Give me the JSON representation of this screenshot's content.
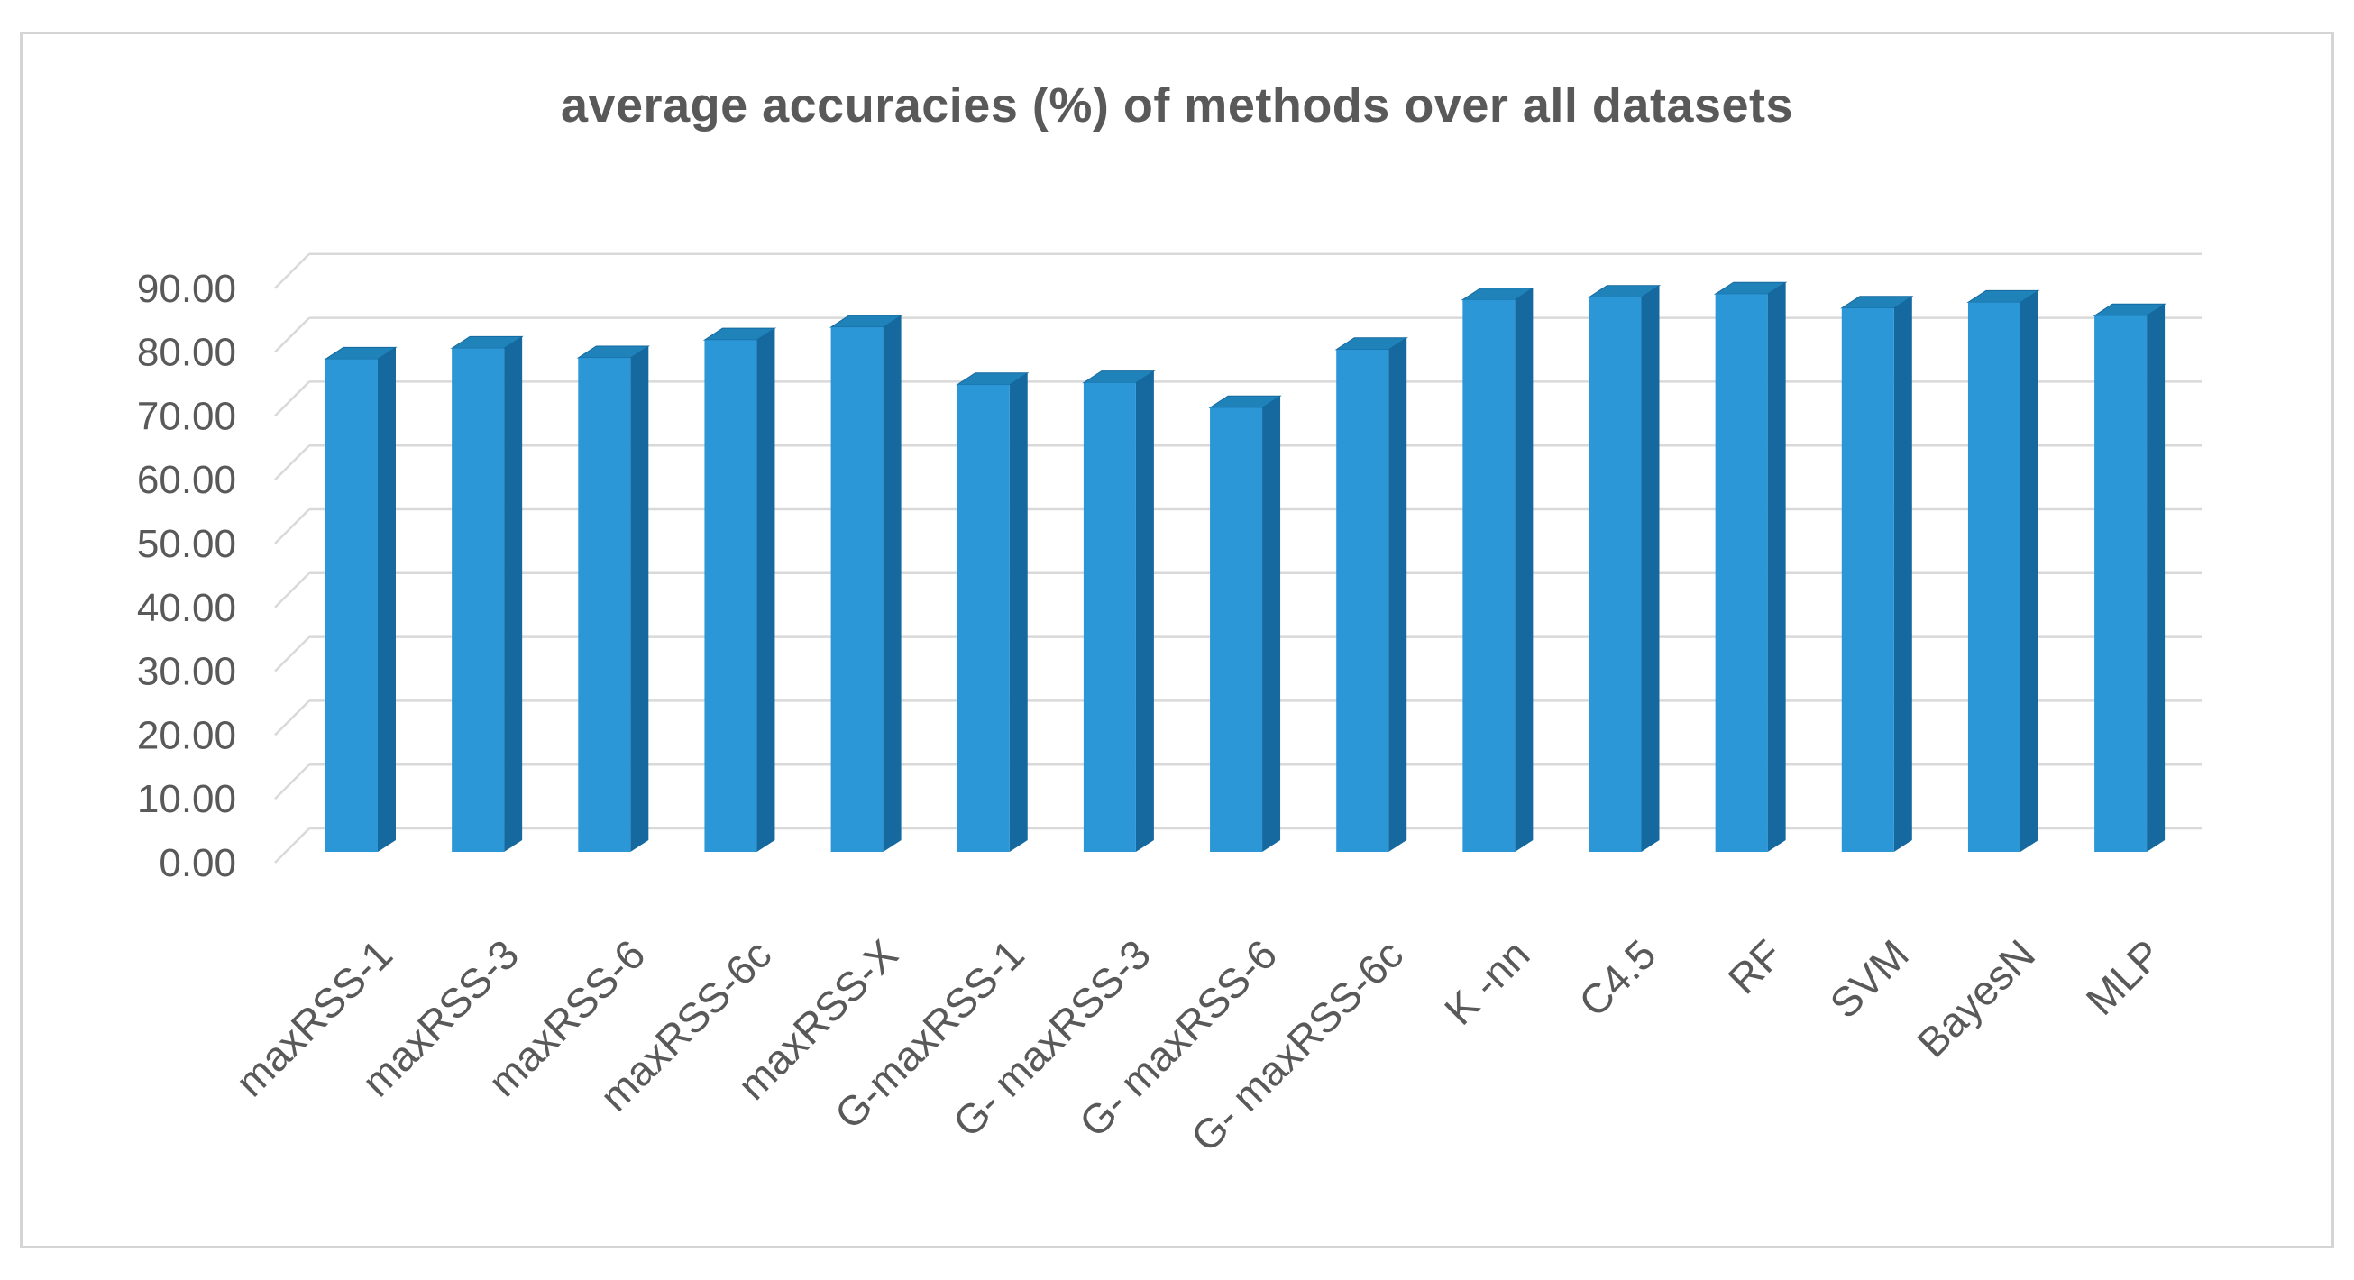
{
  "chart_data": {
    "type": "bar",
    "style_3d": true,
    "title": "average accuracies (%) of methods over all datasets",
    "categories": [
      "maxRSS-1",
      "maxRSS-3",
      "maxRSS-6",
      "maxRSS-6c",
      "maxRSS-X",
      "G-maxRSS-1",
      "G- maxRSS-3",
      "G- maxRSS-6",
      "G- maxRSS-6c",
      "K -nn",
      "C4.5",
      "RF",
      "SVM",
      "BayesN",
      "MLP"
    ],
    "values": [
      77.2,
      78.9,
      77.4,
      80.2,
      82.2,
      73.2,
      73.5,
      69.6,
      78.7,
      86.5,
      86.9,
      87.4,
      85.2,
      86.1,
      84.0
    ],
    "xlabel": "",
    "ylabel": "",
    "ylim": [
      0,
      90
    ],
    "ytick_step": 10,
    "ytick_labels": [
      "0.00",
      "10.00",
      "20.00",
      "30.00",
      "40.00",
      "50.00",
      "60.00",
      "70.00",
      "80.00",
      "90.00"
    ],
    "grid": true,
    "legend": "none",
    "colors": {
      "bar_front": "#2B97D6",
      "bar_side": "#15699E",
      "bar_top": "#1F83BA",
      "gridline": "#D9D9D9",
      "axis_text": "#595959",
      "title_text": "#595959",
      "frame_border": "#D5D5D5",
      "background": "#FFFFFF"
    }
  }
}
